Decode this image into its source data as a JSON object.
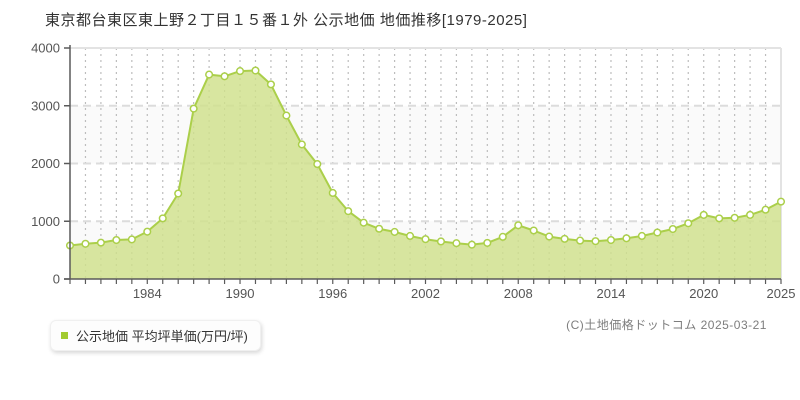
{
  "title": "東京都台東区東上野２丁目１５番１外 公示地価 地価推移[1979-2025]",
  "legend": {
    "label": "公示地価 平均坪単価(万円/坪)"
  },
  "footer": {
    "copyright": "(C)土地価格ドットコム 2025-03-21"
  },
  "chart_data": {
    "type": "area",
    "title": "東京都台東区東上野２丁目１５番１外 公示地価 地価推移[1979-2025]",
    "x": [
      1979,
      1980,
      1981,
      1982,
      1983,
      1984,
      1985,
      1986,
      1987,
      1988,
      1989,
      1990,
      1991,
      1992,
      1993,
      1994,
      1995,
      1996,
      1997,
      1998,
      1999,
      2000,
      2001,
      2002,
      2003,
      2004,
      2005,
      2006,
      2007,
      2008,
      2009,
      2010,
      2011,
      2012,
      2013,
      2014,
      2015,
      2016,
      2017,
      2018,
      2019,
      2020,
      2021,
      2022,
      2023,
      2024,
      2025
    ],
    "series": [
      {
        "name": "公示地価 平均坪単価(万円/坪)",
        "values": [
          580,
          610,
          630,
          675,
          685,
          820,
          1050,
          1480,
          2950,
          3540,
          3510,
          3600,
          3610,
          3370,
          2830,
          2330,
          1990,
          1490,
          1175,
          975,
          870,
          815,
          745,
          690,
          650,
          620,
          595,
          625,
          730,
          930,
          840,
          735,
          695,
          665,
          655,
          675,
          705,
          745,
          805,
          865,
          965,
          1110,
          1050,
          1060,
          1110,
          1200,
          1340
        ]
      }
    ],
    "xlabel": "",
    "ylabel": "",
    "ylim": [
      0,
      4000
    ],
    "y_ticks": [
      0,
      1000,
      2000,
      3000,
      4000
    ],
    "x_tick_labels": [
      1984,
      1990,
      1996,
      2002,
      2008,
      2014,
      2020,
      2025
    ],
    "grid": true,
    "legend_position": "bottom-left",
    "colors": {
      "area_fill": "#cfe08b",
      "line": "#abcf4a",
      "marker_fill": "#ffffff",
      "legend_marker": "#a2cb30",
      "grid_vertical": "#bdbdbd",
      "grid_horizontal": "#dcdcdc",
      "axis": "#5a5a5a",
      "tick_label": "#555555",
      "band_alt": "#fafafa",
      "border": "#e3e3e3"
    }
  }
}
